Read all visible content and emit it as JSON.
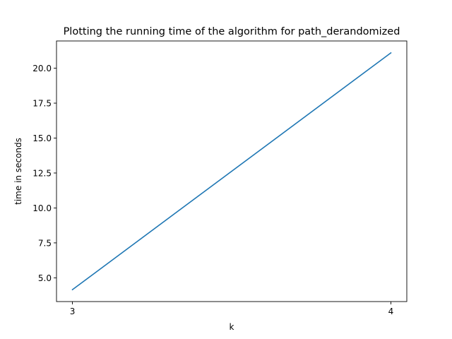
{
  "chart_data": {
    "type": "line",
    "title": "Plotting the running time of the algorithm for path_derandomized",
    "xlabel": "k",
    "ylabel": "time in seconds",
    "x": [
      3,
      4
    ],
    "series": [
      {
        "values": [
          4.15,
          21.1
        ],
        "color": "#1f77b4"
      }
    ],
    "xlim": [
      2.95,
      4.05
    ],
    "ylim": [
      3.3,
      21.95
    ],
    "xticks": [
      3,
      4
    ],
    "xtick_labels": [
      "3",
      "4"
    ],
    "yticks": [
      5.0,
      7.5,
      10.0,
      12.5,
      15.0,
      17.5,
      20.0
    ],
    "ytick_labels": [
      "5.0",
      "7.5",
      "10.0",
      "12.5",
      "15.0",
      "17.5",
      "20.0"
    ],
    "grid": false,
    "legend": "none"
  }
}
